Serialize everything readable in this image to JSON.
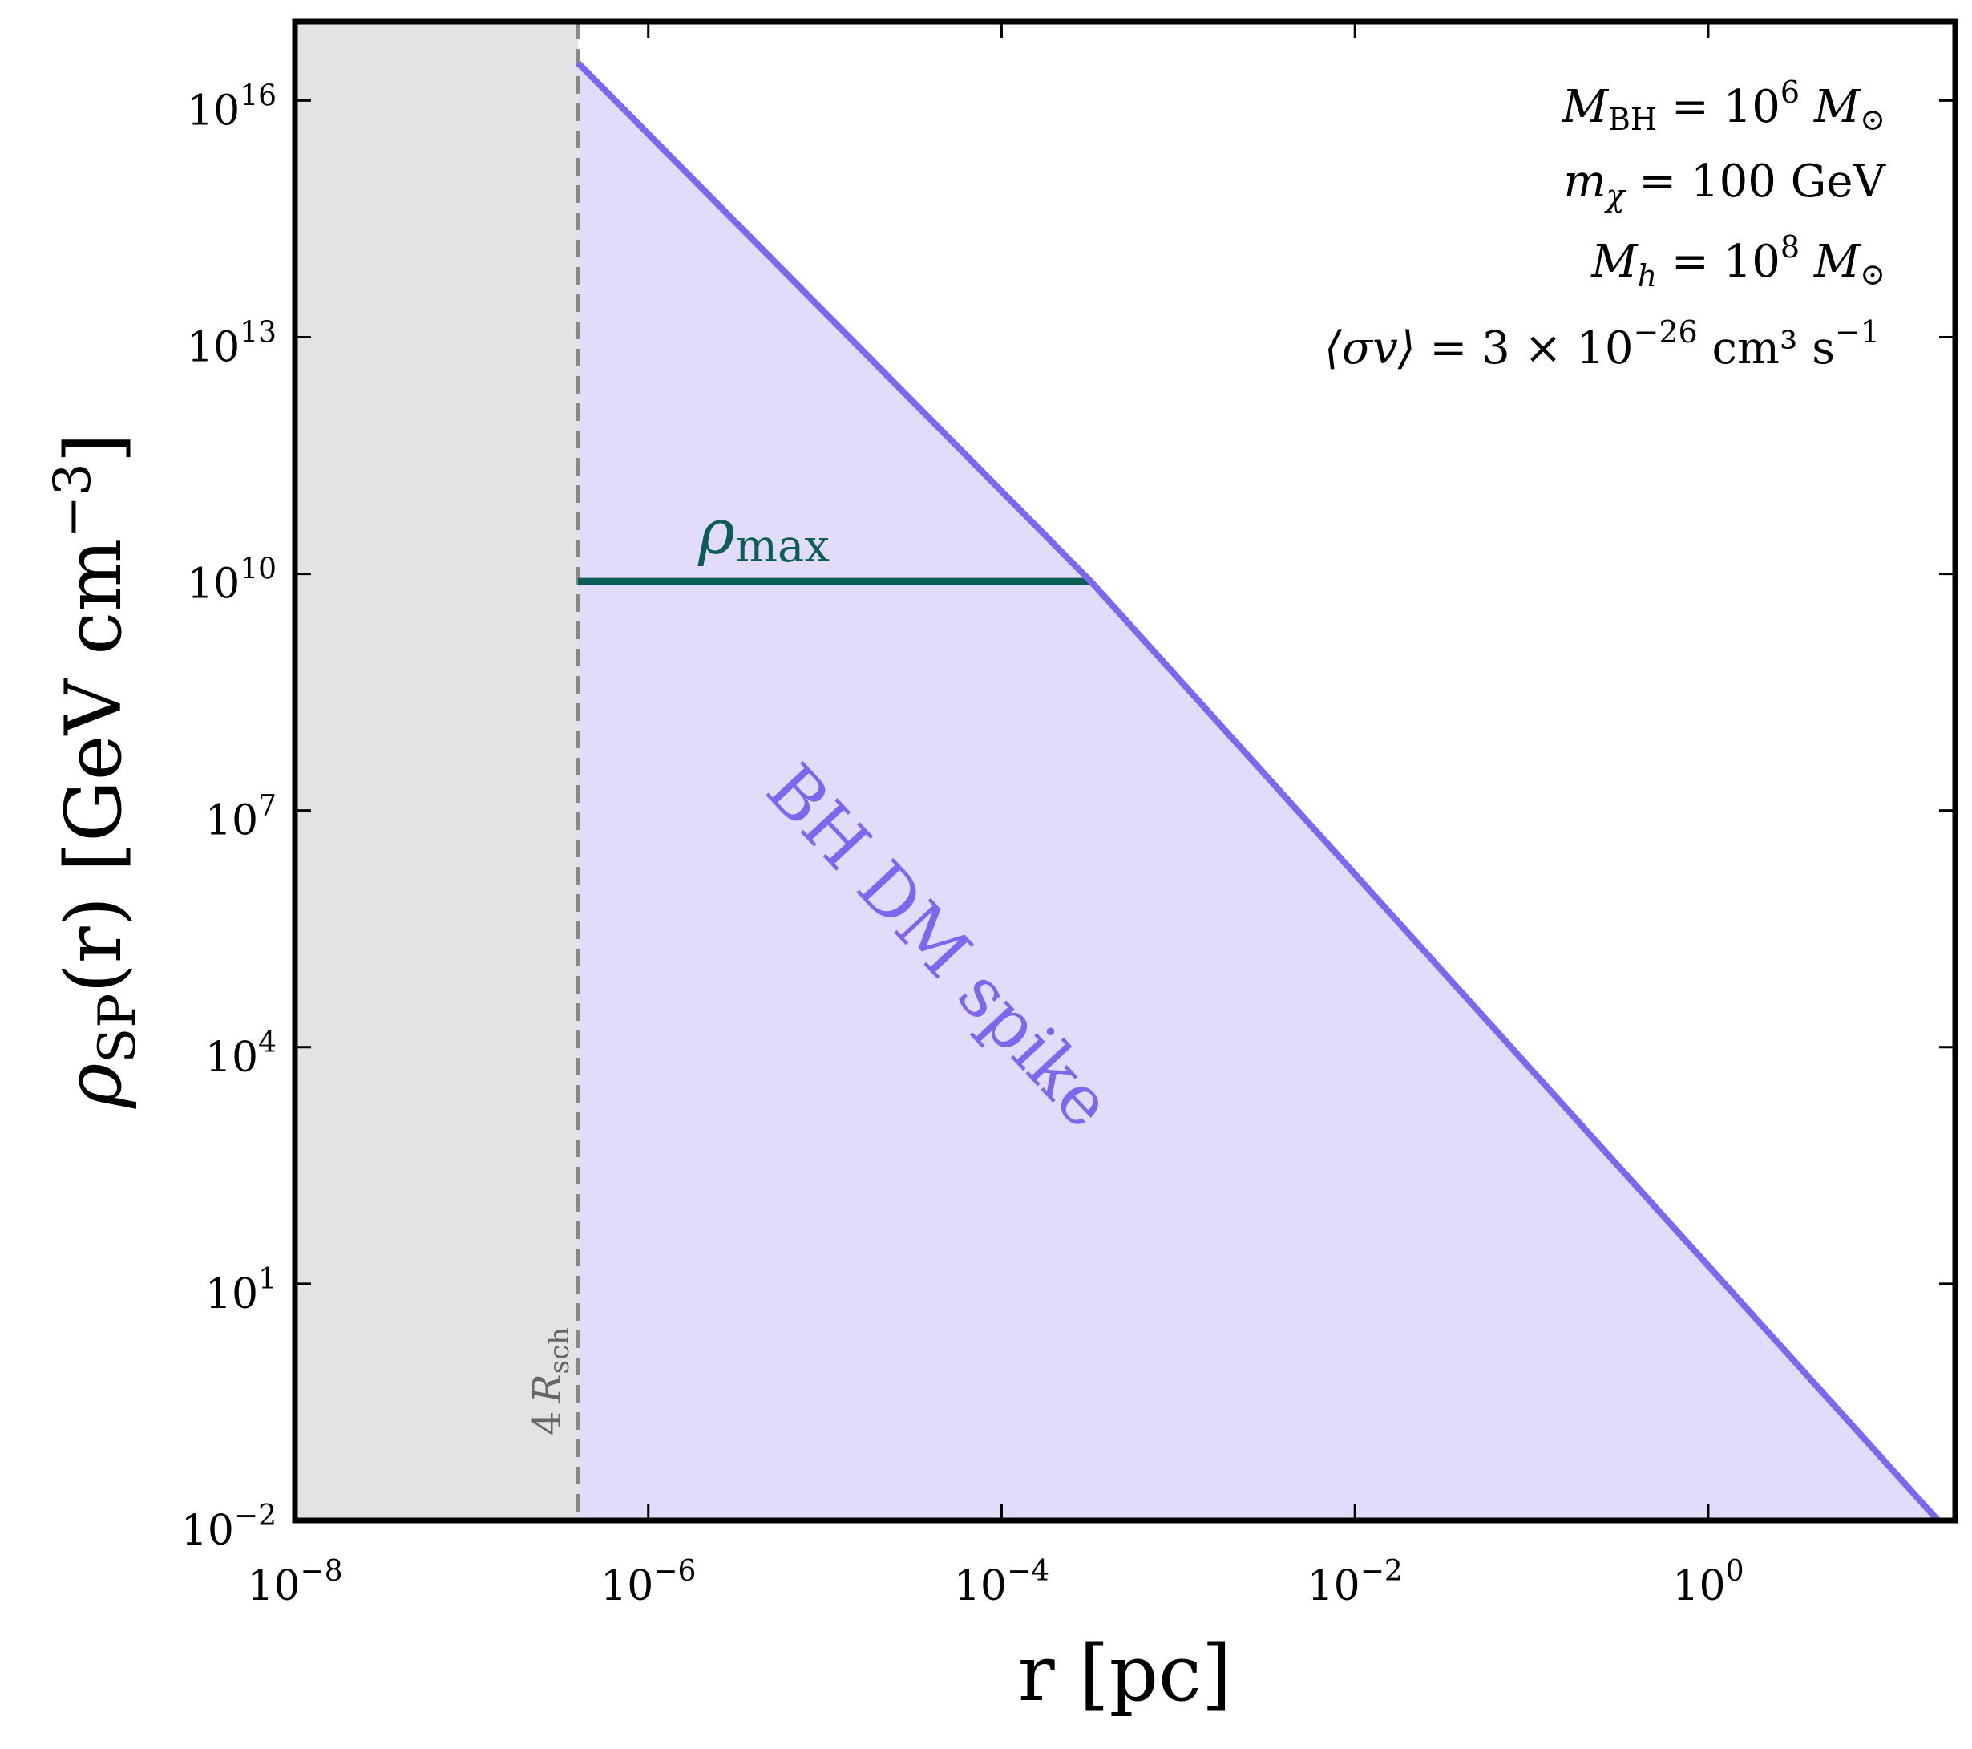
{
  "chart_data": {
    "type": "line",
    "title": "",
    "xlabel": "r [pc]",
    "ylabel": "ρSP(r) [GeV cm−3]",
    "ylabel_parts": {
      "rho": "ρ",
      "sub": "SP",
      "arg": "(r) [GeV cm",
      "exp": "−3",
      "close": "]"
    },
    "x_scale": "log",
    "y_scale": "log",
    "xlim": [
      1e-08,
      25.0
    ],
    "ylim": [
      0.01,
      1e+17
    ],
    "x_ticks": [
      {
        "value": 1e-08,
        "base": "10",
        "exp": "−8"
      },
      {
        "value": 1e-06,
        "base": "10",
        "exp": "−6"
      },
      {
        "value": 0.0001,
        "base": "10",
        "exp": "−4"
      },
      {
        "value": 0.01,
        "base": "10",
        "exp": "−2"
      },
      {
        "value": 1,
        "base": "10",
        "exp": "0"
      }
    ],
    "y_ticks": [
      {
        "value": 0.01,
        "base": "10",
        "exp": "−2"
      },
      {
        "value": 10.0,
        "base": "10",
        "exp": "1"
      },
      {
        "value": 10000.0,
        "base": "10",
        "exp": "4"
      },
      {
        "value": 10000000.0,
        "base": "10",
        "exp": "7"
      },
      {
        "value": 10000000000.0,
        "base": "10",
        "exp": "10"
      },
      {
        "value": 10000000000000.0,
        "base": "10",
        "exp": "13"
      },
      {
        "value": 1e+16,
        "base": "10",
        "exp": "16"
      }
    ],
    "grid": false,
    "series": [
      {
        "label": "BH DM spike",
        "color": "#7b68ee",
        "fill_color": "#e2dcfa",
        "x": [
          4e-07,
          0.00032,
          20
        ],
        "y": [
          3e+16,
          8000000000.0,
          0.01
        ]
      }
    ],
    "rho_max": {
      "label": "ρmax",
      "label_main": "ρ",
      "label_sub": "max",
      "value": 8000000000.0,
      "x_range": [
        4e-07,
        0.00032
      ],
      "color": "#0b5e56"
    },
    "excluded_region": {
      "label": "4 Rsch",
      "label_num": "4",
      "label_R": "R",
      "label_sub": "sch",
      "x_edge": 4e-07,
      "fill_color": "#e3e3e3",
      "line_color": "#888888"
    },
    "annotations": [
      {
        "main": "M",
        "sub": "BH",
        "rest": " = 10",
        "sup": "6",
        "tail": " M",
        "sub2": "⊙"
      },
      {
        "main": "m",
        "sub": "χ",
        "rest": " = 100 GeV",
        "sup": "",
        "tail": "",
        "sub2": ""
      },
      {
        "main": "M",
        "sub": "h",
        "rest": " = 10",
        "sup": "8",
        "tail": " M",
        "sub2": "⊙"
      },
      {
        "main": "⟨σv⟩",
        "sub": "",
        "rest": " = 3 × 10",
        "sup": "−26",
        "tail": " cm³ s",
        "sub2": "",
        "sup2": "−1"
      }
    ]
  }
}
